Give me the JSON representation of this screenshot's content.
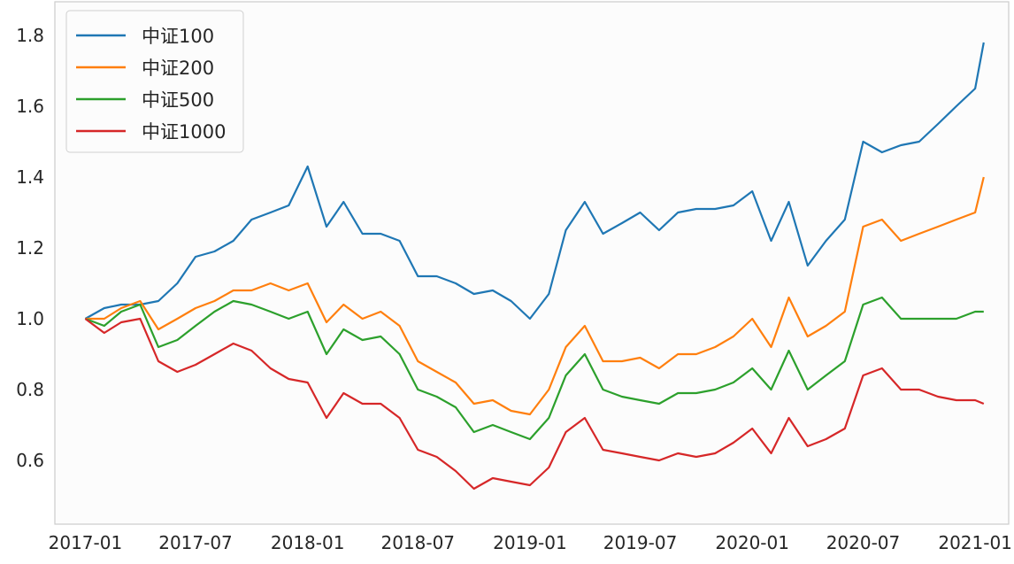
{
  "chart_data": {
    "type": "line",
    "title": "",
    "xlabel": "",
    "ylabel": "",
    "ylim": [
      0.42,
      1.895
    ],
    "xlim": [
      "2016-11-12",
      "2021-02-25"
    ],
    "grid": false,
    "legend_placement": "top-left",
    "x_ticks": [
      "2017-01",
      "2017-07",
      "2018-01",
      "2018-07",
      "2019-01",
      "2019-07",
      "2020-01",
      "2020-07",
      "2021-01"
    ],
    "y_ticks": [
      "0.6",
      "0.8",
      "1.0",
      "1.2",
      "1.4",
      "1.6",
      "1.8"
    ],
    "x": [
      "2017-01-01",
      "2017-02-01",
      "2017-03-01",
      "2017-04-01",
      "2017-05-01",
      "2017-06-01",
      "2017-07-01",
      "2017-08-01",
      "2017-09-01",
      "2017-10-01",
      "2017-11-01",
      "2017-12-01",
      "2018-01-01",
      "2018-02-01",
      "2018-03-01",
      "2018-04-01",
      "2018-05-01",
      "2018-06-01",
      "2018-07-01",
      "2018-08-01",
      "2018-09-01",
      "2018-10-01",
      "2018-11-01",
      "2018-12-01",
      "2019-01-01",
      "2019-02-01",
      "2019-03-01",
      "2019-04-01",
      "2019-05-01",
      "2019-06-01",
      "2019-07-01",
      "2019-08-01",
      "2019-09-01",
      "2019-10-01",
      "2019-11-01",
      "2019-12-01",
      "2020-01-01",
      "2020-02-01",
      "2020-03-01",
      "2020-04-01",
      "2020-05-01",
      "2020-06-01",
      "2020-07-01",
      "2020-08-01",
      "2020-09-01",
      "2020-10-01",
      "2020-11-01",
      "2020-12-01",
      "2021-01-01",
      "2021-01-15"
    ],
    "series": [
      {
        "name": "中证100",
        "color": "#1f77b4",
        "values": [
          1.0,
          1.03,
          1.04,
          1.04,
          1.05,
          1.1,
          1.175,
          1.19,
          1.22,
          1.28,
          1.3,
          1.32,
          1.43,
          1.26,
          1.33,
          1.24,
          1.24,
          1.22,
          1.12,
          1.12,
          1.1,
          1.07,
          1.08,
          1.05,
          1.0,
          1.07,
          1.25,
          1.33,
          1.24,
          1.27,
          1.3,
          1.25,
          1.3,
          1.31,
          1.31,
          1.32,
          1.36,
          1.22,
          1.33,
          1.15,
          1.22,
          1.28,
          1.5,
          1.47,
          1.49,
          1.5,
          1.55,
          1.6,
          1.65,
          1.78
        ]
      },
      {
        "name": "中证200",
        "color": "#ff7f0e",
        "values": [
          1.0,
          1.0,
          1.03,
          1.05,
          0.97,
          1.0,
          1.03,
          1.05,
          1.08,
          1.08,
          1.1,
          1.08,
          1.1,
          0.99,
          1.04,
          1.0,
          1.02,
          0.98,
          0.88,
          0.85,
          0.82,
          0.76,
          0.77,
          0.74,
          0.73,
          0.8,
          0.92,
          0.98,
          0.88,
          0.88,
          0.89,
          0.86,
          0.9,
          0.9,
          0.92,
          0.95,
          1.0,
          0.92,
          1.06,
          0.95,
          0.98,
          1.02,
          1.26,
          1.28,
          1.22,
          1.24,
          1.26,
          1.28,
          1.3,
          1.4
        ]
      },
      {
        "name": "中证500",
        "color": "#2ca02c",
        "values": [
          1.0,
          0.98,
          1.02,
          1.04,
          0.92,
          0.94,
          0.98,
          1.02,
          1.05,
          1.04,
          1.02,
          1.0,
          1.02,
          0.9,
          0.97,
          0.94,
          0.95,
          0.9,
          0.8,
          0.78,
          0.75,
          0.68,
          0.7,
          0.68,
          0.66,
          0.72,
          0.84,
          0.9,
          0.8,
          0.78,
          0.77,
          0.76,
          0.79,
          0.79,
          0.8,
          0.82,
          0.86,
          0.8,
          0.91,
          0.8,
          0.84,
          0.88,
          1.04,
          1.06,
          1.0,
          1.0,
          1.0,
          1.0,
          1.02,
          1.02
        ]
      },
      {
        "name": "中证1000",
        "color": "#d62728",
        "values": [
          1.0,
          0.96,
          0.99,
          1.0,
          0.88,
          0.85,
          0.87,
          0.9,
          0.93,
          0.91,
          0.86,
          0.83,
          0.82,
          0.72,
          0.79,
          0.76,
          0.76,
          0.72,
          0.63,
          0.61,
          0.57,
          0.52,
          0.55,
          0.54,
          0.53,
          0.58,
          0.68,
          0.72,
          0.63,
          0.62,
          0.61,
          0.6,
          0.62,
          0.61,
          0.62,
          0.65,
          0.69,
          0.62,
          0.72,
          0.64,
          0.66,
          0.69,
          0.84,
          0.86,
          0.8,
          0.8,
          0.78,
          0.77,
          0.77,
          0.76
        ]
      }
    ]
  }
}
